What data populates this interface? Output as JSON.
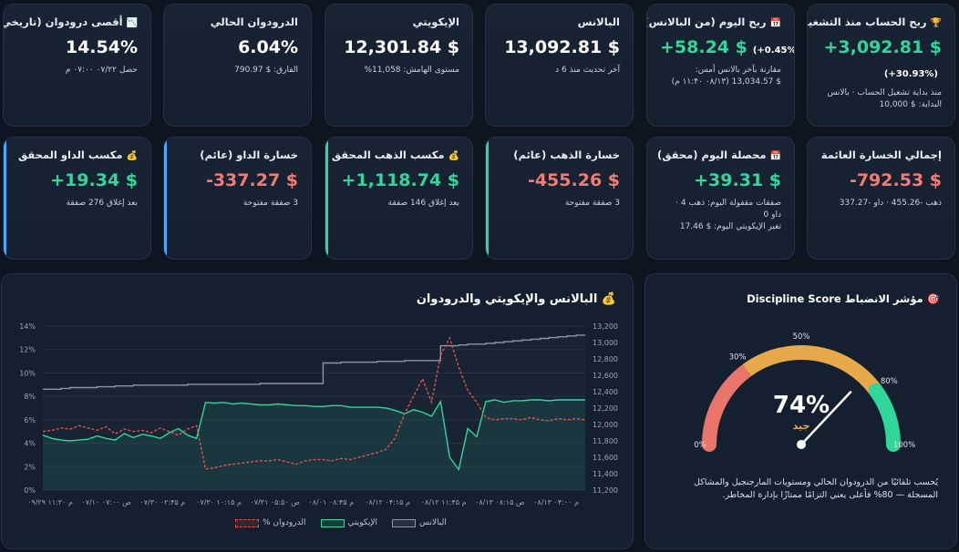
{
  "cards_row1": [
    {
      "id": "lifetime-profit",
      "emoji": "🏆",
      "title": "ربح الحساب منذ التشغيل",
      "value": "+3,092.81 $",
      "cls": "pos",
      "pct": "(+30.93%)",
      "sub1": "منذ بداية تشغيل الحساب · بالانس",
      "sub2": "البداية: $ 10,000"
    },
    {
      "id": "today-profit",
      "emoji": "📅",
      "title": "ربح اليوم (من البالانس)",
      "value": "+58.24 $",
      "cls": "pos",
      "pct": "(+0.45%)",
      "sub1": "مقارنة بآخر بالانس أمس:",
      "sub2": "$ 13,034.57 (۰۸/۱۳ ۱۱:۴۰ م)"
    },
    {
      "id": "balance",
      "emoji": "",
      "title": "البالانس",
      "value": "13,092.81 $",
      "cls": "",
      "pct": "",
      "sub1": "آخر تحديث منذ 6 د",
      "sub2": ""
    },
    {
      "id": "equity",
      "emoji": "",
      "title": "الإيكويتي",
      "value": "12,301.84 $",
      "cls": "",
      "pct": "",
      "sub1": "مستوى الهامش: 11,058%",
      "sub2": ""
    },
    {
      "id": "current-drawdown",
      "emoji": "",
      "title": "الدرودوان الحالي",
      "value": "6.04%",
      "cls": "",
      "pct": "",
      "sub1": "الفارق: $ 790.97",
      "sub2": ""
    },
    {
      "id": "max-drawdown",
      "emoji": "📉",
      "title": "أقصى درودوان (تاريخي)",
      "value": "14.54%",
      "cls": "",
      "pct": "",
      "sub1": "حصل ۰۷/۲۲ ۰۷:۰۰ م",
      "sub2": ""
    }
  ],
  "cards_row2": [
    {
      "id": "total-floating-loss",
      "emoji": "",
      "title": "إجمالي الخسارة العائمة",
      "value": "-792.53 $",
      "cls": "neg",
      "sub1": "ذهب -455.26 · داو -337.27",
      "sub2": "",
      "sub3": "",
      "accent": ""
    },
    {
      "id": "today-realized",
      "emoji": "📅",
      "title": "محصلة اليوم (محقق)",
      "value": "+39.31 $",
      "cls": "pos",
      "sub1": "صفقات مقفولة اليوم: ذهب 4 ·",
      "sub2": "داو 0",
      "sub3": "تغير الإيكويتي اليوم: $ 17.46",
      "accent": ""
    },
    {
      "id": "gold-floating-loss",
      "emoji": "",
      "title": "خسارة الذهب (عائم)",
      "value": "-455.26 $",
      "cls": "neg",
      "sub1": "3 صفقة مفتوحة",
      "sub2": "",
      "sub3": "",
      "accent": "green"
    },
    {
      "id": "gold-realized",
      "emoji": "💰",
      "title": "مكسب الذهب المحقق",
      "value": "+1,118.74 $",
      "cls": "pos",
      "sub1": "بعد إغلاق 146 صفقة",
      "sub2": "",
      "sub3": "",
      "accent": "green"
    },
    {
      "id": "dow-floating-loss",
      "emoji": "",
      "title": "خسارة الداو (عائم)",
      "value": "-337.27 $",
      "cls": "neg",
      "sub1": "3 صفقة مفتوحة",
      "sub2": "",
      "sub3": "",
      "accent": "blue"
    },
    {
      "id": "dow-realized",
      "emoji": "💰",
      "title": "مكسب الداو المحقق",
      "value": "+19.34 $",
      "cls": "pos",
      "sub1": "بعد إغلاق 276 صفقة",
      "sub2": "",
      "sub3": "",
      "accent": "blue"
    }
  ],
  "chart_panel": {
    "title": "البالانس والإيكويتي والدرودوان",
    "emoji": "💰"
  },
  "chart_data": {
    "type": "line",
    "title": "البالانس والإيكويتي والدرودوان",
    "x_tick_labels": [
      "۰۹/۲۹ ۱۱:۳۰ م",
      "۰۷/۱۰ ۰۷:۰۰ ص",
      "۰۷/۳۰ ۰۲:۴۵ م",
      "۰۷/۳۰ ۱۰:۱۵ م",
      "۰۷/۳۱ ۰۵:۵۰ ص",
      "۰۸/۰۱ ۰۸:۴۵ م",
      "۰۸/۱۲ ۰۴:۱۵ م",
      "۰۸/۱۲ ۱۱:۴۵ م",
      "۰۸/۱۳ ۰۸:۱۵ ص",
      "۰۸/۱۳ ۰۴:۰۰ م"
    ],
    "y_left_ticks": [
      "0%",
      "2%",
      "4%",
      "6%",
      "8%",
      "10%",
      "12%",
      "14%"
    ],
    "y_left_range": [
      0,
      14
    ],
    "y_right_ticks": [
      "11,200",
      "11,400",
      "11,600",
      "11,800",
      "12,000",
      "12,200",
      "12,400",
      "12,600",
      "12,800",
      "13,000",
      "13,200"
    ],
    "y_right_range": [
      11200,
      13200
    ],
    "series": [
      {
        "name": "البالانس",
        "axis": "right",
        "color": "#8b96a3",
        "values": [
          12430,
          12430,
          12440,
          12450,
          12450,
          12450,
          12460,
          12460,
          12470,
          12470,
          12480,
          12480,
          12480,
          12480,
          12480,
          12480,
          12490,
          12490,
          12490,
          12490,
          12490,
          12490,
          12490,
          12490,
          12500,
          12500,
          12500,
          12500,
          12500,
          12500,
          12500,
          12750,
          12750,
          12760,
          12760,
          12760,
          12760,
          12770,
          12770,
          12770,
          12780,
          12780,
          12780,
          12780,
          12960,
          12960,
          12970,
          12980,
          12980,
          12990,
          13000,
          13010,
          13020,
          13030,
          13040,
          13050,
          13060,
          13070,
          13080,
          13090,
          13090
        ]
      },
      {
        "name": "الإيكويتي",
        "axis": "right",
        "color": "#2fd79a",
        "values": [
          11870,
          11830,
          11810,
          11800,
          11810,
          11820,
          11860,
          11830,
          11810,
          11890,
          11840,
          11880,
          11860,
          11830,
          11900,
          11950,
          11870,
          11830,
          12270,
          12260,
          12270,
          12250,
          12260,
          12250,
          12240,
          12240,
          12250,
          12240,
          12230,
          12230,
          12220,
          12220,
          12230,
          12230,
          12210,
          12210,
          12210,
          12210,
          12200,
          12170,
          12130,
          12180,
          12150,
          12100,
          12280,
          11600,
          11450,
          11950,
          11850,
          12280,
          12300,
          12270,
          12290,
          12290,
          12300,
          12300,
          12290,
          12300,
          12300,
          12300,
          12300
        ]
      },
      {
        "name": "الدرودوان %",
        "axis": "left",
        "color": "#e0534a",
        "dashed": true,
        "values": [
          5.0,
          5.1,
          5.3,
          5.2,
          5.5,
          5.3,
          5.1,
          5.4,
          4.8,
          5.2,
          5.0,
          5.1,
          4.9,
          5.3,
          5.0,
          4.7,
          5.2,
          5.5,
          1.8,
          1.9,
          2.1,
          2.2,
          2.3,
          2.4,
          2.5,
          2.5,
          2.6,
          2.4,
          2.2,
          2.5,
          2.6,
          2.6,
          2.5,
          2.7,
          2.6,
          2.8,
          3.0,
          3.2,
          3.5,
          4.5,
          6.5,
          8.0,
          9.5,
          7.5,
          11.5,
          13.0,
          10.5,
          8.5,
          7.5,
          6.2,
          6.0,
          6.1,
          6.1,
          6.0,
          6.2,
          6.0,
          5.9,
          6.1,
          6.0,
          6.1,
          6.0
        ]
      }
    ],
    "legend": [
      "البالانس",
      "الإيكويتي",
      "الدرودوان %"
    ],
    "legend_position": "bottom",
    "grid": true
  },
  "gauge": {
    "title": "مؤشر الانضباط Discipline Score",
    "emoji": "🎯",
    "score_label": "74%",
    "score": 74,
    "rating": "جيد",
    "tick_labels": [
      "0%",
      "30%",
      "50%",
      "80%",
      "100%"
    ],
    "zones": [
      {
        "from": 0,
        "to": 30,
        "color": "#e8746a"
      },
      {
        "from": 30,
        "to": 80,
        "color": "#e6a94a"
      },
      {
        "from": 80,
        "to": 100,
        "color": "#2fd79a"
      }
    ],
    "note_line1": "يُحسب تلقائيًا من الدرودوان الحالي ومستويات المارجنجيل والمشاكل",
    "note_line2": "المسجلة — 80% فأعلى يعني التزامًا ممتازًا بإدارة المخاطر."
  }
}
